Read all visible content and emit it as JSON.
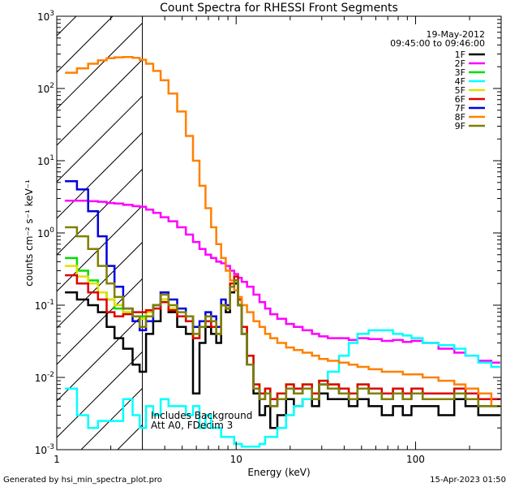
{
  "chart_data": {
    "type": "line",
    "title": "Count Spectra for RHESSI Front Segments",
    "xlabel": "Energy (keV)",
    "ylabel": "counts cm⁻² s⁻¹ keV⁻¹",
    "x_scale": "log",
    "y_scale": "log",
    "xlim": [
      1,
      300
    ],
    "ylim": [
      0.001,
      1000
    ],
    "x_ticks": [
      {
        "value": 1,
        "label": "1"
      },
      {
        "value": 10,
        "label": "10"
      },
      {
        "value": 100,
        "label": "100"
      }
    ],
    "y_ticks": [
      {
        "value": 0.001,
        "base": "10",
        "exp": "-3"
      },
      {
        "value": 0.01,
        "base": "10",
        "exp": "-2"
      },
      {
        "value": 0.1,
        "base": "10",
        "exp": "-1"
      },
      {
        "value": 1,
        "base": "10",
        "exp": "0"
      },
      {
        "value": 10,
        "base": "10",
        "exp": "1"
      },
      {
        "value": 100,
        "base": "10",
        "exp": "2"
      },
      {
        "value": 1000,
        "base": "10",
        "exp": "3"
      }
    ],
    "legend_header": [
      "19-May-2012",
      "09:45:00 to 09:46:00"
    ],
    "legend_position": "top-right",
    "shaded_region": {
      "x_from": 1,
      "x_to": 3,
      "pattern": "hatch",
      "meaning": "excluded low-energy range"
    },
    "annotation": [
      "Includes Background",
      "Att A0, FDecim 3"
    ],
    "footer_left": "Generated by hsi_min_spectra_plot.pro",
    "footer_right": "15-Apr-2023 01:50",
    "series": [
      {
        "name": "1F",
        "color": "#000000",
        "x": [
          1.2,
          1.4,
          1.6,
          1.8,
          2,
          2.2,
          2.5,
          2.8,
          3,
          3.3,
          3.6,
          4,
          4.4,
          5,
          5.5,
          6,
          6.5,
          7,
          7.5,
          8,
          8.5,
          9,
          9.5,
          10,
          10.5,
          11,
          12,
          13,
          14,
          15,
          16,
          18,
          20,
          22,
          25,
          28,
          30,
          35,
          40,
          45,
          50,
          60,
          70,
          80,
          90,
          100,
          120,
          150,
          180,
          200,
          250,
          280
        ],
        "y": [
          0.15,
          0.12,
          0.1,
          0.08,
          0.05,
          0.035,
          0.025,
          0.015,
          0.012,
          0.04,
          0.06,
          0.15,
          0.08,
          0.05,
          0.04,
          0.006,
          0.03,
          0.05,
          0.04,
          0.03,
          0.1,
          0.08,
          0.15,
          0.2,
          0.1,
          0.04,
          0.015,
          0.006,
          0.003,
          0.004,
          0.002,
          0.003,
          0.005,
          0.004,
          0.005,
          0.004,
          0.006,
          0.005,
          0.005,
          0.004,
          0.005,
          0.004,
          0.003,
          0.004,
          0.003,
          0.004,
          0.004,
          0.003,
          0.005,
          0.004,
          0.003,
          0.003
        ]
      },
      {
        "name": "2F",
        "color": "#ff00ff",
        "x": [
          1.2,
          1.4,
          1.6,
          1.8,
          2,
          2.2,
          2.5,
          2.8,
          3,
          3.3,
          3.6,
          4,
          4.4,
          5,
          5.5,
          6,
          6.5,
          7,
          7.5,
          8,
          8.5,
          9,
          9.5,
          10,
          10.5,
          11,
          12,
          13,
          14,
          15,
          16,
          18,
          20,
          22,
          25,
          28,
          30,
          35,
          40,
          45,
          50,
          60,
          70,
          80,
          90,
          100,
          120,
          150,
          180,
          200,
          250,
          280
        ],
        "y": [
          2.8,
          2.8,
          2.75,
          2.7,
          2.6,
          2.55,
          2.45,
          2.35,
          2.3,
          2.1,
          1.9,
          1.65,
          1.45,
          1.2,
          0.95,
          0.75,
          0.6,
          0.5,
          0.45,
          0.4,
          0.38,
          0.35,
          0.3,
          0.27,
          0.24,
          0.21,
          0.18,
          0.14,
          0.11,
          0.09,
          0.075,
          0.065,
          0.055,
          0.05,
          0.045,
          0.04,
          0.037,
          0.035,
          0.035,
          0.033,
          0.035,
          0.034,
          0.032,
          0.033,
          0.031,
          0.032,
          0.03,
          0.025,
          0.022,
          0.02,
          0.017,
          0.016
        ]
      },
      {
        "name": "3F",
        "color": "#00dd00",
        "x": [
          1.2,
          1.4,
          1.6,
          1.8,
          2,
          2.2,
          2.5,
          2.8,
          3,
          3.3,
          3.6,
          4,
          4.4,
          5,
          5.5,
          6,
          6.5,
          7,
          7.5,
          8,
          8.5,
          9,
          9.5,
          10,
          10.5,
          11,
          12,
          13,
          14,
          15,
          16,
          18,
          20,
          22,
          25,
          28,
          30,
          35,
          40,
          45,
          50,
          60,
          70,
          80,
          90,
          100,
          120,
          150,
          180,
          200,
          250,
          280
        ],
        "y": [
          0.45,
          0.3,
          0.22,
          0.15,
          0.12,
          0.09,
          0.08,
          0.07,
          0.07,
          0.08,
          0.1,
          0.12,
          0.09,
          0.07,
          0.06,
          0.04,
          0.05,
          0.06,
          0.05,
          0.04,
          0.1,
          0.09,
          0.18,
          0.25,
          0.12,
          0.05,
          0.02,
          0.008,
          0.006,
          0.007,
          0.005,
          0.006,
          0.008,
          0.007,
          0.008,
          0.006,
          0.009,
          0.008,
          0.007,
          0.006,
          0.008,
          0.007,
          0.006,
          0.007,
          0.006,
          0.007,
          0.006,
          0.006,
          0.007,
          0.006,
          0.005,
          0.005
        ]
      },
      {
        "name": "4F",
        "color": "#00ffff",
        "x": [
          1.2,
          1.4,
          1.6,
          1.8,
          2,
          2.2,
          2.5,
          2.8,
          3,
          3.3,
          3.6,
          4,
          4.4,
          5,
          5.5,
          6,
          6.5,
          7,
          7.5,
          8,
          8.5,
          9,
          9.5,
          10,
          10.5,
          11,
          12,
          13,
          14,
          15,
          16,
          18,
          20,
          22,
          25,
          28,
          30,
          35,
          40,
          45,
          50,
          60,
          70,
          80,
          90,
          100,
          120,
          150,
          180,
          200,
          250,
          280
        ],
        "y": [
          0.007,
          0.003,
          0.002,
          0.0025,
          0.0025,
          0.0025,
          0.005,
          0.003,
          0.002,
          0.004,
          0.003,
          0.005,
          0.004,
          0.004,
          0.003,
          0.004,
          0.002,
          0.003,
          0.002,
          0.002,
          0.0015,
          0.0015,
          0.0015,
          0.0012,
          0.0012,
          0.0011,
          0.0011,
          0.0011,
          0.0012,
          0.0015,
          0.0015,
          0.002,
          0.003,
          0.004,
          0.005,
          0.006,
          0.008,
          0.012,
          0.02,
          0.03,
          0.04,
          0.045,
          0.045,
          0.04,
          0.038,
          0.035,
          0.03,
          0.028,
          0.025,
          0.02,
          0.016,
          0.014
        ]
      },
      {
        "name": "5F",
        "color": "#e0e000",
        "x": [
          1.2,
          1.4,
          1.6,
          1.8,
          2,
          2.2,
          2.5,
          2.8,
          3,
          3.3,
          3.6,
          4,
          4.4,
          5,
          5.5,
          6,
          6.5,
          7,
          7.5,
          8,
          8.5,
          9,
          9.5,
          10,
          10.5,
          11,
          12,
          13,
          14,
          15,
          16,
          18,
          20,
          22,
          25,
          28,
          30,
          35,
          40,
          45,
          50,
          60,
          70,
          80,
          90,
          100,
          120,
          150,
          180,
          200,
          250,
          280
        ],
        "y": [
          0.35,
          0.25,
          0.2,
          0.15,
          0.12,
          0.1,
          0.08,
          0.07,
          0.065,
          0.08,
          0.1,
          0.12,
          0.09,
          0.07,
          0.06,
          0.035,
          0.05,
          0.06,
          0.05,
          0.04,
          0.1,
          0.09,
          0.2,
          0.25,
          0.12,
          0.05,
          0.02,
          0.008,
          0.006,
          0.007,
          0.005,
          0.006,
          0.008,
          0.007,
          0.008,
          0.006,
          0.009,
          0.008,
          0.007,
          0.006,
          0.008,
          0.007,
          0.006,
          0.007,
          0.006,
          0.007,
          0.006,
          0.006,
          0.007,
          0.006,
          0.005,
          0.005
        ]
      },
      {
        "name": "6F",
        "color": "#dd0000",
        "x": [
          1.2,
          1.4,
          1.6,
          1.8,
          2,
          2.2,
          2.5,
          2.8,
          3,
          3.3,
          3.6,
          4,
          4.4,
          5,
          5.5,
          6,
          6.5,
          7,
          7.5,
          8,
          8.5,
          9,
          9.5,
          10,
          10.5,
          11,
          12,
          13,
          14,
          15,
          16,
          18,
          20,
          22,
          25,
          28,
          30,
          35,
          40,
          45,
          50,
          60,
          70,
          80,
          90,
          100,
          120,
          150,
          180,
          200,
          250,
          280
        ],
        "y": [
          0.26,
          0.2,
          0.15,
          0.12,
          0.08,
          0.07,
          0.075,
          0.08,
          0.08,
          0.085,
          0.09,
          0.11,
          0.085,
          0.07,
          0.06,
          0.035,
          0.05,
          0.06,
          0.05,
          0.04,
          0.1,
          0.09,
          0.2,
          0.25,
          0.12,
          0.05,
          0.02,
          0.008,
          0.006,
          0.007,
          0.005,
          0.006,
          0.008,
          0.007,
          0.008,
          0.006,
          0.009,
          0.008,
          0.007,
          0.006,
          0.008,
          0.007,
          0.006,
          0.007,
          0.006,
          0.007,
          0.006,
          0.006,
          0.007,
          0.006,
          0.005,
          0.005
        ]
      },
      {
        "name": "7F",
        "color": "#0000dd",
        "x": [
          1.2,
          1.4,
          1.6,
          1.8,
          2,
          2.2,
          2.5,
          2.8,
          3,
          3.3,
          3.6,
          4,
          4.4,
          5,
          5.5,
          6,
          6.5,
          7,
          7.5,
          8,
          8.5,
          9,
          9.5,
          10,
          10.5,
          11,
          12,
          13,
          14,
          15,
          16,
          18,
          20,
          22,
          25,
          28,
          30,
          35,
          40,
          45,
          50,
          60,
          70,
          80,
          90,
          100,
          120,
          150,
          180,
          200,
          250,
          280
        ],
        "y": [
          5.2,
          4,
          2,
          0.9,
          0.35,
          0.18,
          0.09,
          0.06,
          0.045,
          0.06,
          0.1,
          0.15,
          0.12,
          0.09,
          0.07,
          0.05,
          0.06,
          0.08,
          0.07,
          0.05,
          0.12,
          0.1,
          0.18,
          0.22,
          0.1,
          0.04,
          0.015,
          0.007,
          0.005,
          0.006,
          0.004,
          0.005,
          0.007,
          0.006,
          0.007,
          0.005,
          0.008,
          0.007,
          0.006,
          0.005,
          0.007,
          0.006,
          0.005,
          0.006,
          0.005,
          0.006,
          0.005,
          0.005,
          0.006,
          0.005,
          0.004,
          0.004
        ]
      },
      {
        "name": "8F",
        "color": "#ff8000",
        "x": [
          1.2,
          1.4,
          1.6,
          1.8,
          2,
          2.2,
          2.5,
          2.8,
          3,
          3.3,
          3.6,
          4,
          4.4,
          5,
          5.5,
          6,
          6.5,
          7,
          7.5,
          8,
          8.5,
          9,
          9.5,
          10,
          10.5,
          11,
          12,
          13,
          14,
          15,
          16,
          18,
          20,
          22,
          25,
          28,
          30,
          35,
          40,
          45,
          50,
          60,
          70,
          80,
          90,
          100,
          120,
          150,
          180,
          200,
          250,
          280
        ],
        "y": [
          165,
          190,
          220,
          245,
          262,
          270,
          272,
          265,
          250,
          220,
          175,
          130,
          85,
          48,
          22,
          10,
          4.5,
          2.2,
          1.2,
          0.7,
          0.45,
          0.3,
          0.22,
          0.16,
          0.13,
          0.1,
          0.08,
          0.06,
          0.05,
          0.04,
          0.035,
          0.03,
          0.026,
          0.024,
          0.022,
          0.02,
          0.018,
          0.017,
          0.016,
          0.015,
          0.014,
          0.013,
          0.012,
          0.012,
          0.011,
          0.011,
          0.01,
          0.009,
          0.008,
          0.007,
          0.006,
          0.004
        ]
      },
      {
        "name": "9F",
        "color": "#808000",
        "x": [
          1.2,
          1.4,
          1.6,
          1.8,
          2,
          2.2,
          2.5,
          2.8,
          3,
          3.3,
          3.6,
          4,
          4.4,
          5,
          5.5,
          6,
          6.5,
          7,
          7.5,
          8,
          8.5,
          9,
          9.5,
          10,
          10.5,
          11,
          12,
          13,
          14,
          15,
          16,
          18,
          20,
          22,
          25,
          28,
          30,
          35,
          40,
          45,
          50,
          60,
          70,
          80,
          90,
          100,
          120,
          150,
          180,
          200,
          250,
          280
        ],
        "y": [
          1.2,
          0.9,
          0.6,
          0.35,
          0.2,
          0.13,
          0.09,
          0.07,
          0.05,
          0.07,
          0.1,
          0.14,
          0.1,
          0.08,
          0.07,
          0.04,
          0.05,
          0.07,
          0.06,
          0.04,
          0.1,
          0.09,
          0.18,
          0.22,
          0.1,
          0.04,
          0.015,
          0.007,
          0.005,
          0.006,
          0.004,
          0.005,
          0.007,
          0.006,
          0.007,
          0.005,
          0.008,
          0.007,
          0.006,
          0.005,
          0.007,
          0.006,
          0.005,
          0.006,
          0.005,
          0.006,
          0.005,
          0.005,
          0.006,
          0.005,
          0.004,
          0.004
        ]
      }
    ]
  }
}
